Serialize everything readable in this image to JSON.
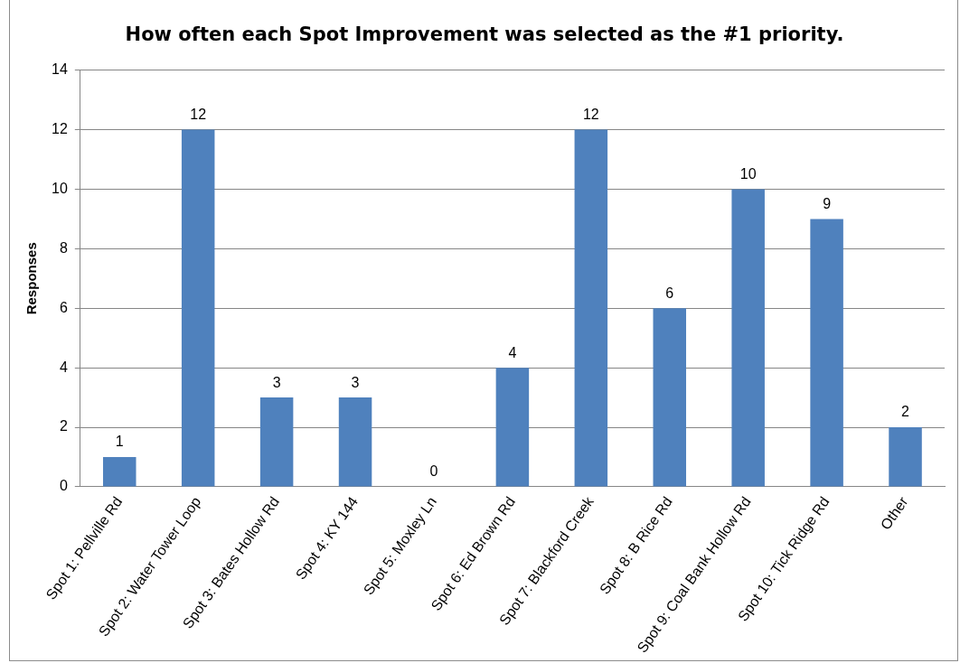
{
  "chart_data": {
    "type": "bar",
    "title": "How often each Spot Improvement was selected as the #1 priority.",
    "ylabel": "Responses",
    "categories": [
      "Spot 1: Pellville Rd",
      "Spot 2: Water Tower Loop",
      "Spot 3: Bates Hollow Rd",
      "Spot 4: KY 144",
      "Spot 5: Moxley Ln",
      "Spot 6: Ed Brown Rd",
      "Spot 7: Blackford Creek",
      "Spot 8: B Rice Rd",
      "Spot 9: Coal Bank Hollow Rd",
      "Spot 10: Tick Ridge Rd",
      "Other"
    ],
    "values": [
      1,
      12,
      3,
      3,
      0,
      4,
      12,
      6,
      10,
      9,
      2
    ],
    "color": "#4f81bd",
    "ylim": [
      0,
      14
    ],
    "yticks": [
      0,
      2,
      4,
      6,
      8,
      10,
      12,
      14
    ],
    "grid": "y",
    "data_labels": true
  }
}
